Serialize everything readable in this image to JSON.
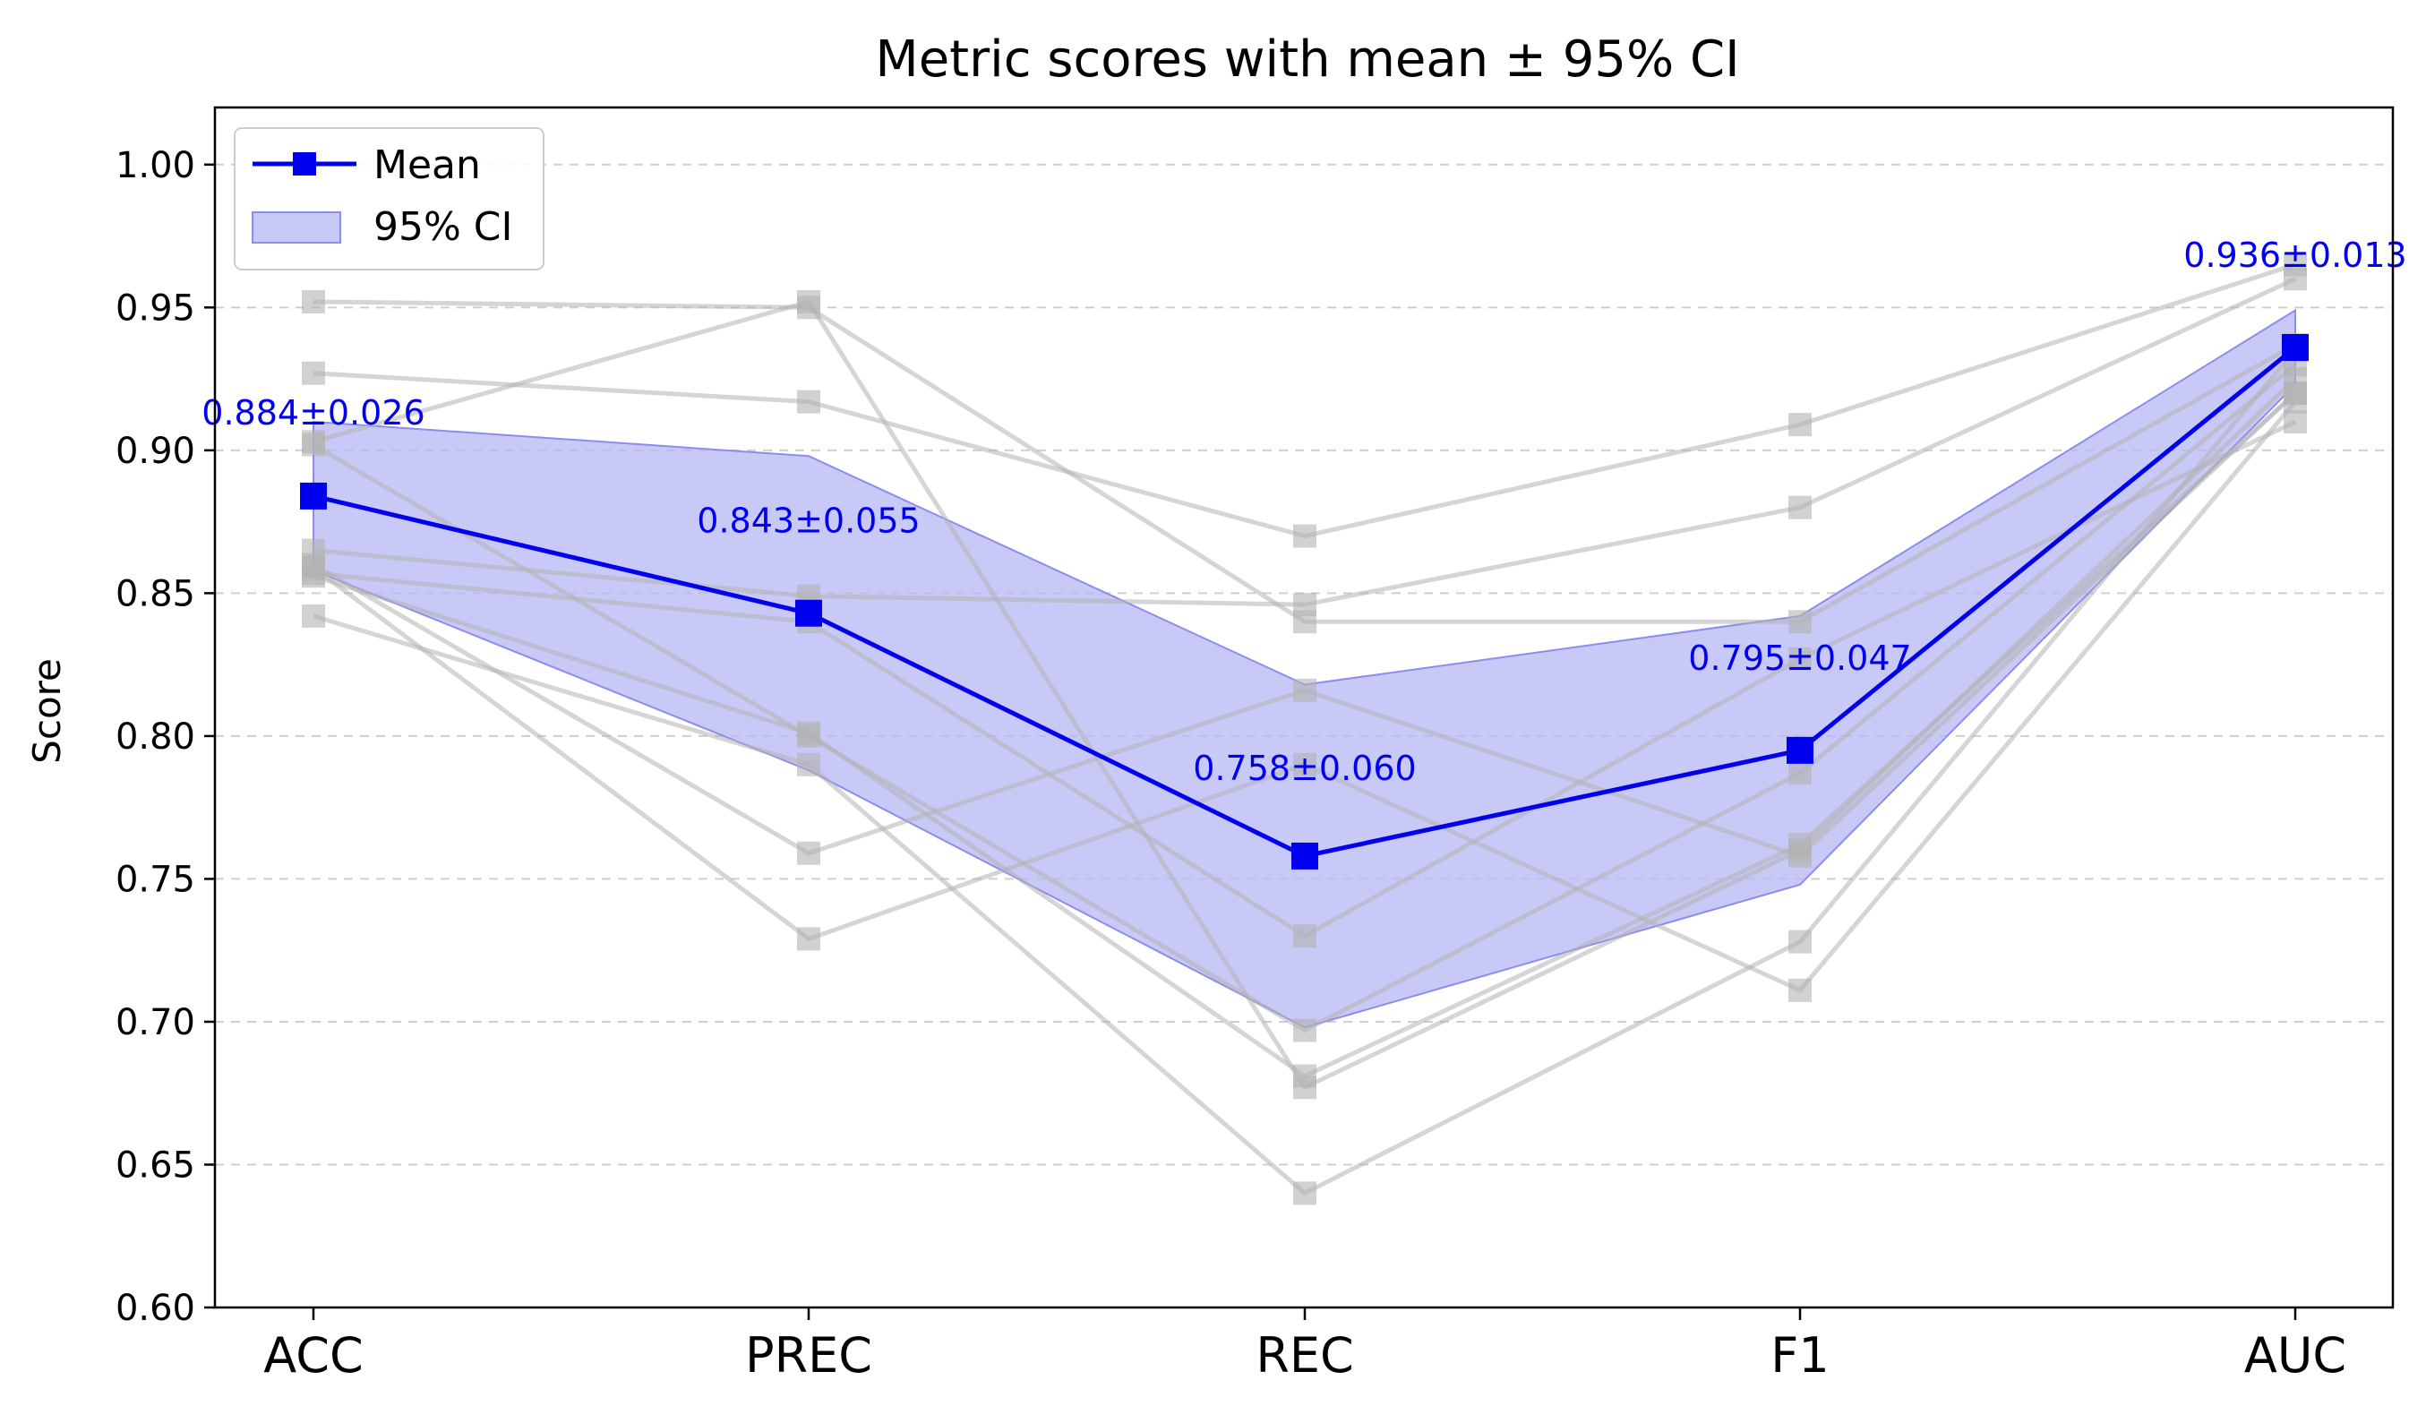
{
  "chart_data": {
    "type": "line",
    "title": "Metric scores with mean ± 95% CI",
    "xlabel": "",
    "ylabel": "Score",
    "categories": [
      "ACC",
      "PREC",
      "REC",
      "F1",
      "AUC"
    ],
    "ylim": [
      0.6,
      1.02
    ],
    "yticks": [
      0.6,
      0.65,
      0.7,
      0.75,
      0.8,
      0.85,
      0.9,
      0.95,
      1.0
    ],
    "ytick_labels": [
      "0.60",
      "0.65",
      "0.70",
      "0.75",
      "0.80",
      "0.85",
      "0.90",
      "0.95",
      "1.00"
    ],
    "grid": "y-dashed",
    "legend": {
      "position": "top-left",
      "entries": [
        {
          "label": "Mean",
          "kind": "line-marker"
        },
        {
          "label": "95% CI",
          "kind": "patch"
        }
      ]
    },
    "mean": {
      "name": "Mean",
      "values": [
        0.884,
        0.843,
        0.758,
        0.795,
        0.936
      ],
      "ci": [
        0.026,
        0.055,
        0.06,
        0.047,
        0.013
      ],
      "labels": [
        "0.884±0.026",
        "0.843±0.055",
        "0.758±0.060",
        "0.795±0.047",
        "0.936±0.013"
      ],
      "color": "#0000ee"
    },
    "ci_band": {
      "name": "95% CI",
      "lower": [
        0.858,
        0.788,
        0.698,
        0.748,
        0.923
      ],
      "upper": [
        0.91,
        0.898,
        0.818,
        0.842,
        0.949
      ],
      "color": "#b7b7f5"
    },
    "runs": [
      {
        "values": [
          0.952,
          0.95,
          0.84,
          0.84,
          0.937
        ]
      },
      {
        "values": [
          0.927,
          0.917,
          0.87,
          0.909,
          0.965
        ]
      },
      {
        "values": [
          0.903,
          0.952,
          0.677,
          0.76,
          0.925
        ]
      },
      {
        "values": [
          0.902,
          0.8,
          0.697,
          0.787,
          0.93
        ]
      },
      {
        "values": [
          0.865,
          0.849,
          0.846,
          0.88,
          0.96
        ]
      },
      {
        "values": [
          0.86,
          0.759,
          0.816,
          0.758,
          0.92
        ]
      },
      {
        "values": [
          0.857,
          0.84,
          0.73,
          0.827,
          0.91
        ]
      },
      {
        "values": [
          0.859,
          0.729,
          0.79,
          0.711,
          0.917
        ]
      },
      {
        "values": [
          0.842,
          0.79,
          0.64,
          0.728,
          0.935
        ]
      },
      {
        "values": [
          0.856,
          0.801,
          0.681,
          0.762,
          0.92
        ]
      }
    ],
    "run_color": "#b3b3b3"
  }
}
